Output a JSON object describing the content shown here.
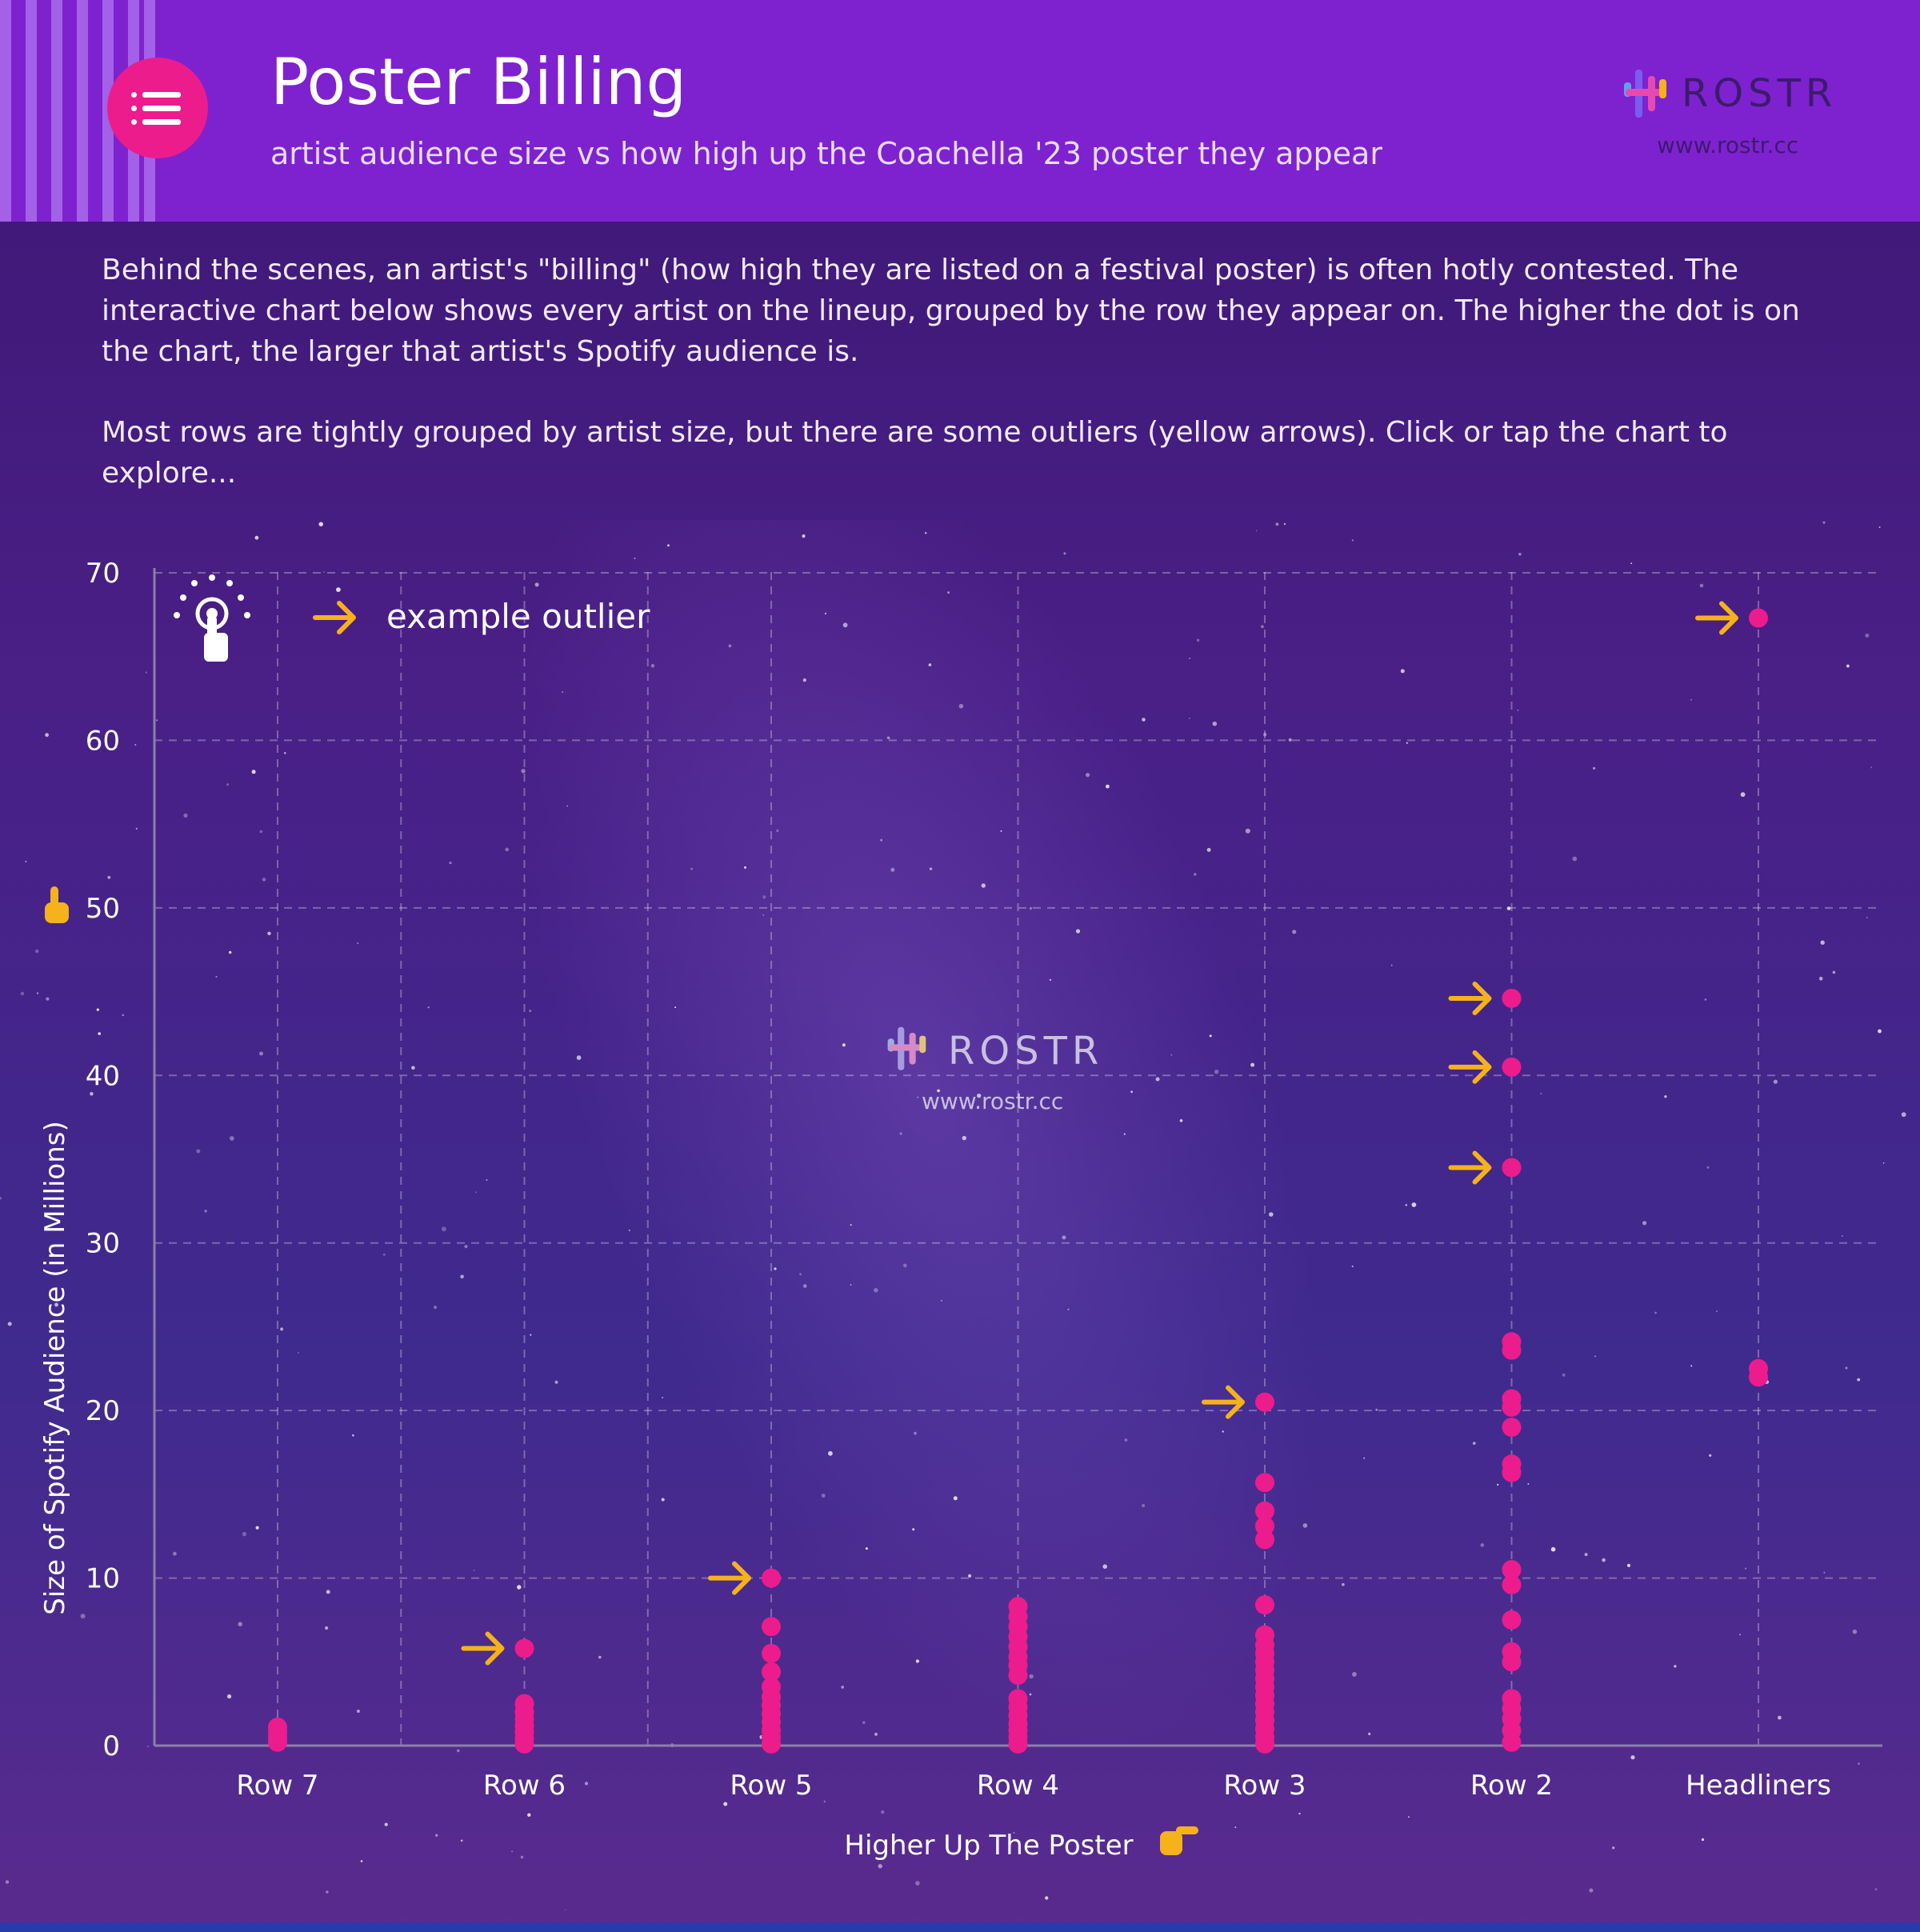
{
  "header": {
    "title": "Poster Billing",
    "subtitle": "artist audience size vs how high up the Coachella '23 poster they appear",
    "logo_text": "ROSTR",
    "logo_url": "www.rostr.cc"
  },
  "intro": {
    "paragraph1": "Behind the scenes, an artist's \"billing\"  (how high they are listed on a festival poster) is often hotly contested. The interactive chart below shows every artist on the lineup, grouped by the row they appear on. The higher the dot is on the chart, the larger that artist's Spotify audience is.",
    "paragraph2": "Most rows are tightly grouped by artist size, but there are some outliers (yellow arrows). Click or tap the chart to explore..."
  },
  "watermark": {
    "logo_text": "ROSTR",
    "logo_url": "www.rostr.cc"
  },
  "legend": {
    "label": "example outlier"
  },
  "colors": {
    "header": "#7e22d0",
    "accent": "#ec1c8c",
    "dot": "#ec1c8c",
    "arrow": "#f5b21a"
  },
  "icons": [
    "menu-icon",
    "tap-icon",
    "pointing-hand-up-icon",
    "pointing-hand-right-icon",
    "arrow-right-icon"
  ],
  "chart_data": {
    "type": "scatter",
    "title": "",
    "xlabel": "Higher Up The Poster",
    "ylabel": "Size of Spotify Audience (in Millions)",
    "ylim": [
      0,
      70
    ],
    "yticks": [
      0,
      10,
      20,
      30,
      40,
      50,
      60,
      70
    ],
    "categories": [
      "Row 7",
      "Row 6",
      "Row 5",
      "Row 4",
      "Row 3",
      "Row 2",
      "Headliners"
    ],
    "grid": true,
    "points": [
      {
        "x": "Row 7",
        "y": 0.2
      },
      {
        "x": "Row 7",
        "y": 0.5
      },
      {
        "x": "Row 7",
        "y": 0.8
      },
      {
        "x": "Row 7",
        "y": 1.1
      },
      {
        "x": "Row 6",
        "y": 0.1
      },
      {
        "x": "Row 6",
        "y": 0.4
      },
      {
        "x": "Row 6",
        "y": 0.8
      },
      {
        "x": "Row 6",
        "y": 1.2
      },
      {
        "x": "Row 6",
        "y": 1.6
      },
      {
        "x": "Row 6",
        "y": 2.0
      },
      {
        "x": "Row 6",
        "y": 2.5
      },
      {
        "x": "Row 6",
        "y": 5.8,
        "outlier": true
      },
      {
        "x": "Row 5",
        "y": 0.1
      },
      {
        "x": "Row 5",
        "y": 0.5
      },
      {
        "x": "Row 5",
        "y": 0.9
      },
      {
        "x": "Row 5",
        "y": 1.4
      },
      {
        "x": "Row 5",
        "y": 1.9
      },
      {
        "x": "Row 5",
        "y": 2.4
      },
      {
        "x": "Row 5",
        "y": 2.9
      },
      {
        "x": "Row 5",
        "y": 3.5
      },
      {
        "x": "Row 5",
        "y": 4.4
      },
      {
        "x": "Row 5",
        "y": 5.5
      },
      {
        "x": "Row 5",
        "y": 7.1
      },
      {
        "x": "Row 5",
        "y": 10.0,
        "outlier": true
      },
      {
        "x": "Row 4",
        "y": 0.1
      },
      {
        "x": "Row 4",
        "y": 0.5
      },
      {
        "x": "Row 4",
        "y": 0.9
      },
      {
        "x": "Row 4",
        "y": 1.3
      },
      {
        "x": "Row 4",
        "y": 1.8
      },
      {
        "x": "Row 4",
        "y": 2.3
      },
      {
        "x": "Row 4",
        "y": 2.8
      },
      {
        "x": "Row 4",
        "y": 4.2
      },
      {
        "x": "Row 4",
        "y": 4.8
      },
      {
        "x": "Row 4",
        "y": 5.3
      },
      {
        "x": "Row 4",
        "y": 5.9
      },
      {
        "x": "Row 4",
        "y": 6.5
      },
      {
        "x": "Row 4",
        "y": 7.1
      },
      {
        "x": "Row 4",
        "y": 7.7
      },
      {
        "x": "Row 4",
        "y": 8.3
      },
      {
        "x": "Row 3",
        "y": 0.1
      },
      {
        "x": "Row 3",
        "y": 0.5
      },
      {
        "x": "Row 3",
        "y": 1.0
      },
      {
        "x": "Row 3",
        "y": 1.5
      },
      {
        "x": "Row 3",
        "y": 2.0
      },
      {
        "x": "Row 3",
        "y": 2.5
      },
      {
        "x": "Row 3",
        "y": 3.0
      },
      {
        "x": "Row 3",
        "y": 3.5
      },
      {
        "x": "Row 3",
        "y": 4.0
      },
      {
        "x": "Row 3",
        "y": 4.5
      },
      {
        "x": "Row 3",
        "y": 5.0
      },
      {
        "x": "Row 3",
        "y": 5.5
      },
      {
        "x": "Row 3",
        "y": 6.0
      },
      {
        "x": "Row 3",
        "y": 6.6
      },
      {
        "x": "Row 3",
        "y": 8.4
      },
      {
        "x": "Row 3",
        "y": 12.3
      },
      {
        "x": "Row 3",
        "y": 13.1
      },
      {
        "x": "Row 3",
        "y": 14.0
      },
      {
        "x": "Row 3",
        "y": 15.7
      },
      {
        "x": "Row 3",
        "y": 20.5,
        "outlier": true
      },
      {
        "x": "Row 2",
        "y": 0.2
      },
      {
        "x": "Row 2",
        "y": 0.9
      },
      {
        "x": "Row 2",
        "y": 1.6
      },
      {
        "x": "Row 2",
        "y": 2.2
      },
      {
        "x": "Row 2",
        "y": 2.8
      },
      {
        "x": "Row 2",
        "y": 5.0
      },
      {
        "x": "Row 2",
        "y": 5.6
      },
      {
        "x": "Row 2",
        "y": 7.5
      },
      {
        "x": "Row 2",
        "y": 9.6
      },
      {
        "x": "Row 2",
        "y": 10.5
      },
      {
        "x": "Row 2",
        "y": 16.3
      },
      {
        "x": "Row 2",
        "y": 16.8
      },
      {
        "x": "Row 2",
        "y": 19.0
      },
      {
        "x": "Row 2",
        "y": 20.2
      },
      {
        "x": "Row 2",
        "y": 20.7
      },
      {
        "x": "Row 2",
        "y": 23.6
      },
      {
        "x": "Row 2",
        "y": 24.1
      },
      {
        "x": "Row 2",
        "y": 34.5,
        "outlier": true
      },
      {
        "x": "Row 2",
        "y": 40.5,
        "outlier": true
      },
      {
        "x": "Row 2",
        "y": 44.6,
        "outlier": true
      },
      {
        "x": "Headliners",
        "y": 22.0
      },
      {
        "x": "Headliners",
        "y": 22.5
      },
      {
        "x": "Headliners",
        "y": 67.3,
        "outlier": true
      }
    ]
  }
}
